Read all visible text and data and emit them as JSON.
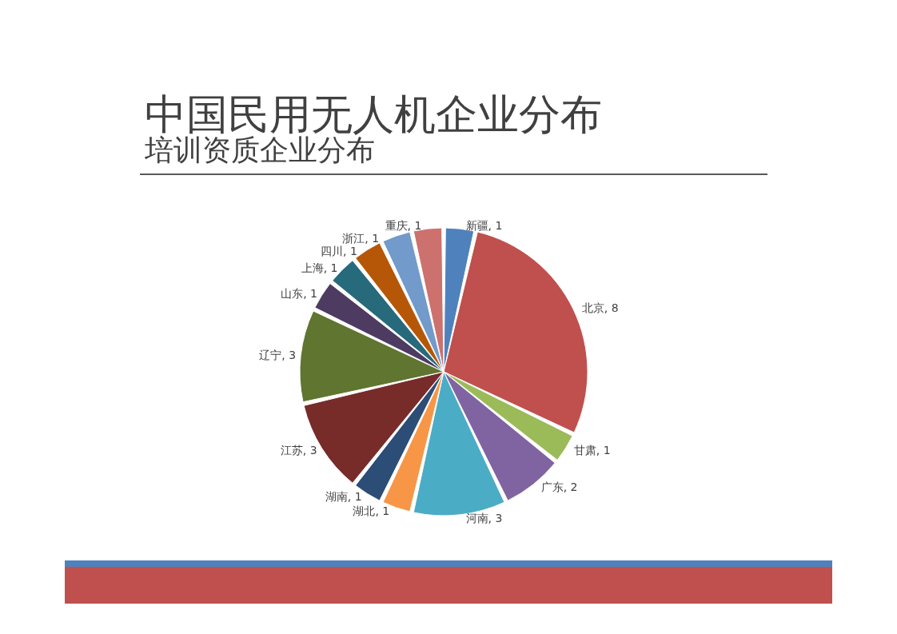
{
  "chart_data": {
    "type": "pie",
    "title": "中国民用无人机企业分布",
    "subtitle": "培训资质企业分布",
    "categories": [
      "新疆",
      "北京",
      "甘肃",
      "广东",
      "河南",
      "湖北",
      "湖南",
      "江苏",
      "辽宁",
      "山东",
      "上海",
      "四川",
      "浙江",
      "重庆"
    ],
    "values": [
      1,
      8,
      1,
      2,
      3,
      1,
      1,
      3,
      3,
      1,
      1,
      1,
      1,
      1
    ],
    "value_labels": [
      ", 1",
      ", 8",
      ", 1",
      ", 2",
      ", 3",
      ", 1",
      ", 1",
      ", 3",
      ", 3",
      ", 1",
      ", 1",
      ", 1",
      ", 1",
      ", 1"
    ],
    "colors": [
      "#4f81bd",
      "#c0504d",
      "#9bbb59",
      "#8064a2",
      "#4bacc6",
      "#f79646",
      "#2c4d75",
      "#772c2a",
      "#5f7530",
      "#4d3b62",
      "#276a7c",
      "#b65708",
      "#729aca",
      "#cd716e"
    ],
    "legend": false
  }
}
